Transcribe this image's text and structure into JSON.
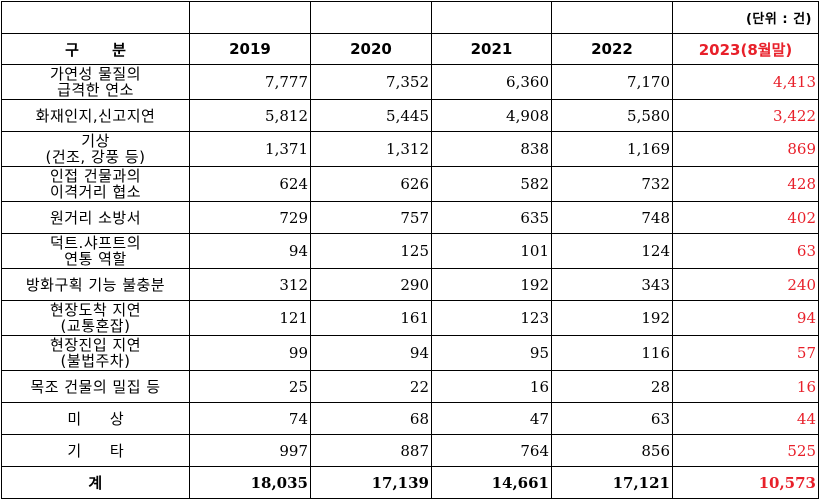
{
  "unit_note": "(단위 : 건)",
  "header": {
    "category": "구 분",
    "years": [
      "2019",
      "2020",
      "2021",
      "2022",
      "2023(8월말)"
    ]
  },
  "rows": [
    {
      "label": [
        "가연성 물질의",
        "급격한 연소"
      ],
      "values": [
        "7,777",
        "7,352",
        "6,360",
        "7,170",
        "4,413"
      ]
    },
    {
      "label": [
        "화재인지,신고지연"
      ],
      "values": [
        "5,812",
        "5,445",
        "4,908",
        "5,580",
        "3,422"
      ]
    },
    {
      "label": [
        "기상",
        "(건조, 강풍 등)"
      ],
      "values": [
        "1,371",
        "1,312",
        "838",
        "1,169",
        "869"
      ]
    },
    {
      "label": [
        "인접 건물과의",
        "이격거리 협소"
      ],
      "values": [
        "624",
        "626",
        "582",
        "732",
        "428"
      ]
    },
    {
      "label": [
        "원거리 소방서"
      ],
      "values": [
        "729",
        "757",
        "635",
        "748",
        "402"
      ]
    },
    {
      "label": [
        "덕트.샤프트의",
        "연통 역할"
      ],
      "values": [
        "94",
        "125",
        "101",
        "124",
        "63"
      ]
    },
    {
      "label": [
        "방화구획 기능 불충분"
      ],
      "values": [
        "312",
        "290",
        "192",
        "343",
        "240"
      ]
    },
    {
      "label": [
        "현장도착 지연",
        "(교통혼잡)"
      ],
      "values": [
        "121",
        "161",
        "123",
        "192",
        "94"
      ]
    },
    {
      "label": [
        "현장진입 지연",
        "(불법주차)"
      ],
      "values": [
        "99",
        "94",
        "95",
        "116",
        "57"
      ]
    },
    {
      "label": [
        "목조 건물의 밀집 등"
      ],
      "values": [
        "25",
        "22",
        "16",
        "28",
        "16"
      ]
    },
    {
      "label": [
        "미 상"
      ],
      "values": [
        "74",
        "68",
        "47",
        "63",
        "44"
      ]
    },
    {
      "label": [
        "기 타"
      ],
      "values": [
        "997",
        "887",
        "764",
        "856",
        "525"
      ]
    }
  ],
  "total": {
    "label": "계",
    "values": [
      "18,035",
      "17,139",
      "14,661",
      "17,121",
      "10,573"
    ]
  },
  "colors": {
    "highlight": "#e8202a",
    "text": "#000000",
    "border": "#000000"
  }
}
